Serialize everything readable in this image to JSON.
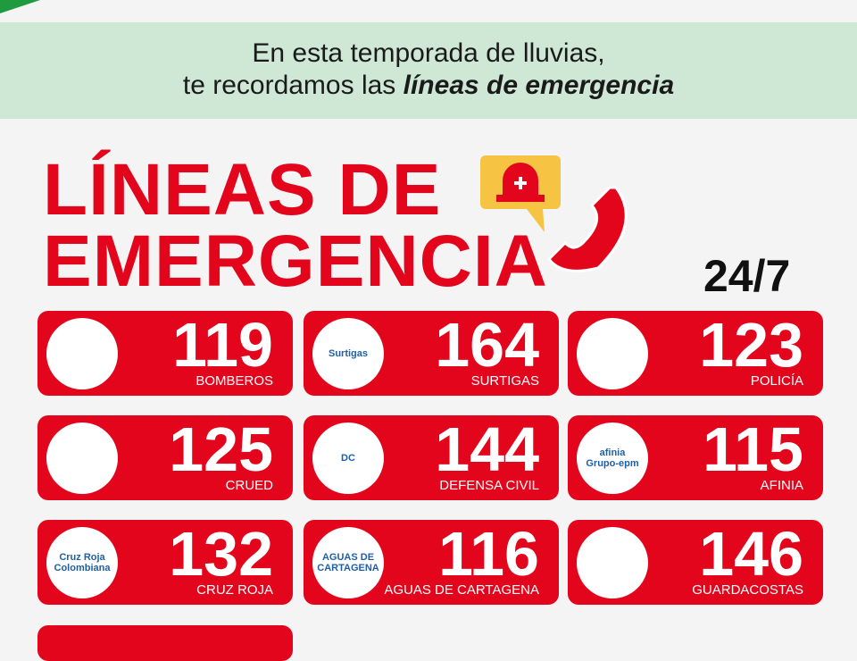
{
  "header": {
    "line1": "En esta temporada de lluvias,",
    "line2_prefix": "te recordamos las",
    "line2_emphasis": "líneas de emergencia"
  },
  "title": {
    "line1": "LÍNEAS DE",
    "line2": "EMERGENCIA"
  },
  "availability": "24/7",
  "lines": [
    {
      "number": 119,
      "name": "BOMBEROS"
    },
    {
      "number": 164,
      "name": "SURTIGAS",
      "logo": [
        "Surtigas"
      ]
    },
    {
      "number": 123,
      "name": "POLICÍA"
    },
    {
      "number": 125,
      "name": "CRUED"
    },
    {
      "number": 144,
      "name": "DEFENSA CIVIL",
      "logo": [
        "DC"
      ]
    },
    {
      "number": 115,
      "name": "AFINIA",
      "logo": [
        "afinia",
        "Grupo-epm"
      ]
    },
    {
      "number": 132,
      "name": "CRUZ ROJA",
      "logo": [
        "Cruz Roja",
        "Colombiana"
      ]
    },
    {
      "number": 116,
      "name": "AGUAS DE CARTAGENA",
      "logo": [
        "AGUAS DE",
        "CARTAGENA"
      ]
    },
    {
      "number": 146,
      "name": "GUARDACOSTAS"
    }
  ]
}
